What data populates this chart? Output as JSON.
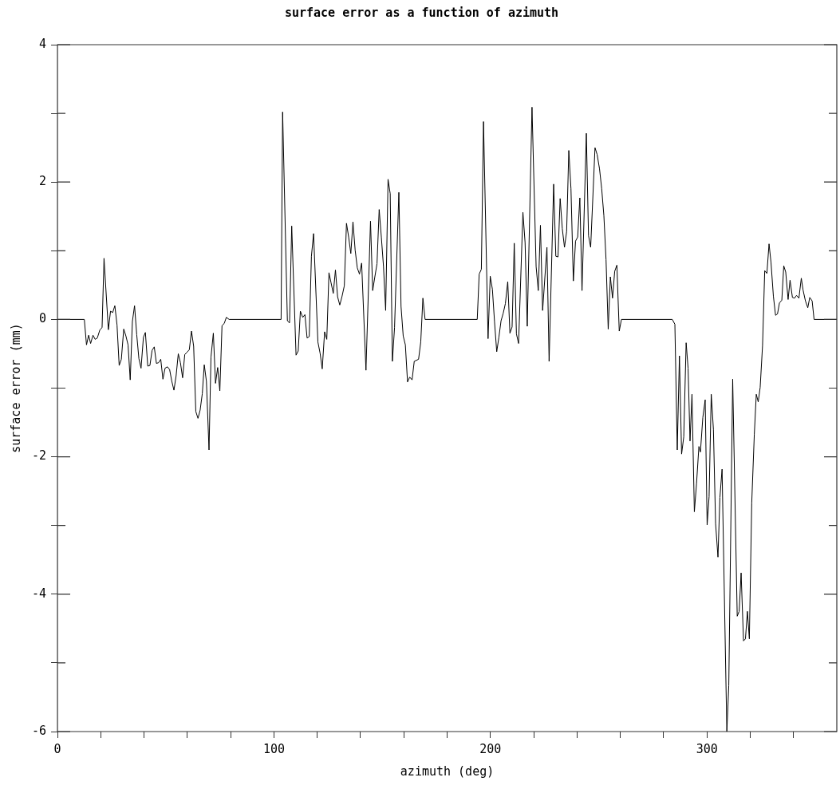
{
  "chart_data": {
    "type": "line",
    "title": "surface error as a function of azimuth",
    "xlabel": "azimuth (deg)",
    "ylabel": "surface error (mm)",
    "xlim": [
      0,
      360
    ],
    "ylim": [
      -6,
      4
    ],
    "xticks": [
      0,
      {
        "value": 20,
        "label": null
      },
      {
        "value": 40,
        "label": null
      },
      {
        "value": 60,
        "label": null
      },
      {
        "value": 80,
        "label": null
      },
      100,
      {
        "value": 120,
        "label": null
      },
      {
        "value": 140,
        "label": null
      },
      {
        "value": 160,
        "label": null
      },
      {
        "value": 180,
        "label": null
      },
      200,
      {
        "value": 220,
        "label": null
      },
      {
        "value": 240,
        "label": null
      },
      {
        "value": 260,
        "label": null
      },
      {
        "value": 280,
        "label": null
      },
      300,
      {
        "value": 320,
        "label": null
      },
      {
        "value": 340,
        "label": null
      }
    ],
    "yticks": [
      -6,
      {
        "value": -5,
        "label": null
      },
      -4,
      {
        "value": -3,
        "label": null
      },
      -2,
      {
        "value": -1,
        "label": null
      },
      0,
      {
        "value": 1,
        "label": null
      },
      2,
      {
        "value": 3,
        "label": null
      },
      4
    ],
    "series": [
      {
        "color": "#000000",
        "x": [
          0,
          12.4,
          13.4,
          14.4,
          15.3,
          16.4,
          17.4,
          18.4,
          19.6,
          20.6,
          21.5,
          23.5,
          24.5,
          25.5,
          26.5,
          27.5,
          28.5,
          29.5,
          30.6,
          31.6,
          32.6,
          33.6,
          34.6,
          35.6,
          36.6,
          37.6,
          38.6,
          39.7,
          40.6,
          41.7,
          42.7,
          43.7,
          44.7,
          45.7,
          46.7,
          47.7,
          48.7,
          49.7,
          50.8,
          51.8,
          52.8,
          53.8,
          54.8,
          55.8,
          56.8,
          57.8,
          58.8,
          59.8,
          60.9,
          61.9,
          62.9,
          63.9,
          64.9,
          65.9,
          66.9,
          67.8,
          68.8,
          70.0,
          70.9,
          72.0,
          73.0,
          74.0,
          75.0,
          76.0,
          77.0,
          78.0,
          79.3,
          103.3,
          104.0,
          106.2,
          107.2,
          108.2,
          110.2,
          111.2,
          112.2,
          113.3,
          114.3,
          115.3,
          116.3,
          117.3,
          118.3,
          120.3,
          121.3,
          122.3,
          123.4,
          124.4,
          125.4,
          126.4,
          127.4,
          128.4,
          129.4,
          130.4,
          131.4,
          132.5,
          133.5,
          134.5,
          135.5,
          136.5,
          137.5,
          138.5,
          139.5,
          140.5,
          142.5,
          144.6,
          145.6,
          146.6,
          147.6,
          148.6,
          149.6,
          150.6,
          151.6,
          152.7,
          153.7,
          154.7,
          155.7,
          157.7,
          158.7,
          159.7,
          160.7,
          161.7,
          162.7,
          163.8,
          164.8,
          166.8,
          167.8,
          168.8,
          169.8,
          193.9,
          194.8,
          195.8,
          196.8,
          198.9,
          199.9,
          200.9,
          201.9,
          202.9,
          203.9,
          204.9,
          205.9,
          206.9,
          208.0,
          209.0,
          210.0,
          211.0,
          212.0,
          213.0,
          215.0,
          216.0,
          217.0,
          219.2,
          221.1,
          222.1,
          223.1,
          224.1,
          226.1,
          227.1,
          229.2,
          230.2,
          231.2,
          232.2,
          233.2,
          234.2,
          235.2,
          236.2,
          237.2,
          238.3,
          239.3,
          240.3,
          241.3,
          242.3,
          244.3,
          245.3,
          246.3,
          248.3,
          249.3,
          250.4,
          251.4,
          252.4,
          253.4,
          254.4,
          255.4,
          256.4,
          257.4,
          258.4,
          259.5,
          260.5,
          284.0,
          285.2,
          286.3,
          287.3,
          288.3,
          289.3,
          290.4,
          291.3,
          292.2,
          293.1,
          294.2,
          295.2,
          296.3,
          297.0,
          298.1,
          299.2,
          300.1,
          301.0,
          302.0,
          303.0,
          304.0,
          305.1,
          306.0,
          307.0,
          309.2,
          310.1,
          311.9,
          314.0,
          314.9,
          315.8,
          316.9,
          317.8,
          318.7,
          319.6,
          320.7,
          321.9,
          322.8,
          323.7,
          324.6,
          325.7,
          326.7,
          327.7,
          328.7,
          329.6,
          330.7,
          331.7,
          332.6,
          333.5,
          334.6,
          335.5,
          336.4,
          337.5,
          338.4,
          339.5,
          340.5,
          341.4,
          342.5,
          343.6,
          344.4,
          345.5,
          346.6,
          347.5,
          348.6,
          349.5,
          360
        ],
        "values": [
          0,
          0,
          -0.37,
          -0.23,
          -0.35,
          -0.23,
          -0.29,
          -0.27,
          -0.15,
          -0.12,
          0.89,
          -0.15,
          0.12,
          0.1,
          0.2,
          -0.08,
          -0.67,
          -0.58,
          -0.14,
          -0.24,
          -0.37,
          -0.88,
          -0.03,
          0.2,
          -0.22,
          -0.57,
          -0.71,
          -0.26,
          -0.19,
          -0.68,
          -0.67,
          -0.45,
          -0.4,
          -0.64,
          -0.63,
          -0.58,
          -0.87,
          -0.71,
          -0.69,
          -0.73,
          -0.9,
          -1.03,
          -0.82,
          -0.5,
          -0.63,
          -0.85,
          -0.51,
          -0.48,
          -0.44,
          -0.17,
          -0.39,
          -1.34,
          -1.44,
          -1.32,
          -1.08,
          -0.66,
          -0.9,
          -1.9,
          -0.55,
          -0.2,
          -0.93,
          -0.7,
          -1.04,
          -0.09,
          -0.06,
          0.03,
          0,
          0,
          3.02,
          -0.02,
          -0.05,
          1.36,
          -0.52,
          -0.46,
          0.12,
          0.03,
          0.07,
          -0.27,
          -0.25,
          0.92,
          1.25,
          -0.33,
          -0.49,
          -0.72,
          -0.18,
          -0.29,
          0.68,
          0.53,
          0.38,
          0.72,
          0.33,
          0.21,
          0.33,
          0.49,
          1.4,
          1.2,
          0.96,
          1.42,
          1.01,
          0.75,
          0.66,
          0.82,
          -0.74,
          1.43,
          0.42,
          0.62,
          0.81,
          1.6,
          1.2,
          0.77,
          0.13,
          2.04,
          1.83,
          -0.61,
          -0.12,
          1.85,
          0.19,
          -0.24,
          -0.37,
          -0.91,
          -0.84,
          -0.88,
          -0.61,
          -0.58,
          -0.33,
          0.31,
          0,
          0,
          0.66,
          0.73,
          2.88,
          -0.28,
          0.63,
          0.44,
          -0.04,
          -0.47,
          -0.26,
          -0.02,
          0.09,
          0.23,
          0.55,
          -0.2,
          -0.11,
          1.11,
          -0.21,
          -0.35,
          1.56,
          1.12,
          -0.1,
          3.09,
          0.77,
          0.42,
          1.37,
          0.13,
          1.05,
          -0.61,
          1.97,
          0.92,
          0.91,
          1.76,
          1.32,
          1.05,
          1.28,
          2.46,
          1.9,
          0.56,
          1.14,
          1.2,
          1.77,
          0.42,
          2.71,
          1.22,
          1.05,
          2.5,
          2.4,
          2.19,
          1.9,
          1.51,
          0.87,
          -0.14,
          0.62,
          0.31,
          0.7,
          0.79,
          -0.17,
          0,
          0,
          -0.07,
          -1.9,
          -0.53,
          -1.96,
          -1.71,
          -0.34,
          -0.71,
          -1.77,
          -1.09,
          -2.8,
          -2.39,
          -1.85,
          -1.93,
          -1.43,
          -1.17,
          -2.99,
          -2.58,
          -1.09,
          -1.6,
          -2.97,
          -3.46,
          -2.59,
          -2.18,
          -6,
          -5.33,
          -0.87,
          -4.32,
          -4.25,
          -3.69,
          -4.68,
          -4.65,
          -4.25,
          -4.65,
          -2.67,
          -1.67,
          -1.09,
          -1.2,
          -0.99,
          -0.38,
          0.71,
          0.67,
          1.1,
          0.83,
          0.34,
          0.06,
          0.08,
          0.24,
          0.28,
          0.78,
          0.69,
          0.29,
          0.57,
          0.32,
          0.31,
          0.35,
          0.31,
          0.6,
          0.43,
          0.27,
          0.17,
          0.32,
          0.27,
          0,
          0
        ]
      }
    ]
  }
}
